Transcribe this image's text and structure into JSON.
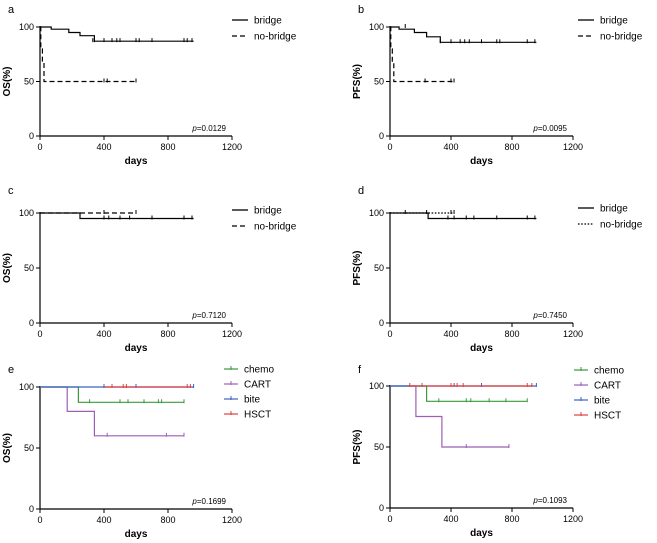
{
  "chart_data": [
    {
      "panel": "a",
      "type": "line",
      "title": "",
      "xlabel": "days",
      "ylabel": "OS(%)",
      "xlim": [
        0,
        1200
      ],
      "ylim": [
        0,
        100
      ],
      "xticks": [
        "0",
        "400",
        "800",
        "1200"
      ],
      "yticks": [
        "0",
        "50",
        "100"
      ],
      "pvalue": "p=0.0129",
      "series": [
        {
          "name": "bridge",
          "style": "solid",
          "color": "#000000",
          "x": [
            0,
            70,
            70,
            180,
            180,
            250,
            250,
            340,
            340,
            960
          ],
          "y": [
            100,
            100,
            98,
            98,
            95,
            95,
            92,
            92,
            87,
            87
          ],
          "censored": [
            [
              330,
              87
            ],
            [
              340,
              87
            ],
            [
              400,
              87
            ],
            [
              450,
              87
            ],
            [
              480,
              87
            ],
            [
              500,
              87
            ],
            [
              600,
              87
            ],
            [
              620,
              87
            ],
            [
              700,
              87
            ],
            [
              900,
              87
            ],
            [
              920,
              87
            ],
            [
              950,
              87
            ]
          ]
        },
        {
          "name": "no-bridge",
          "style": "dashed",
          "color": "#000000",
          "x": [
            0,
            5,
            5,
            15,
            15,
            25,
            25,
            600
          ],
          "y": [
            100,
            100,
            80,
            80,
            67,
            67,
            50,
            50
          ],
          "censored": [
            [
              400,
              50
            ],
            [
              420,
              50
            ],
            [
              600,
              50
            ]
          ]
        }
      ]
    },
    {
      "panel": "b",
      "type": "line",
      "title": "",
      "xlabel": "days",
      "ylabel": "PFS(%)",
      "xlim": [
        0,
        1200
      ],
      "ylim": [
        0,
        100
      ],
      "xticks": [
        "0",
        "400",
        "800",
        "1200"
      ],
      "yticks": [
        "0",
        "50",
        "100"
      ],
      "pvalue": "p=0.0095",
      "series": [
        {
          "name": "bridge",
          "style": "solid",
          "color": "#000000",
          "x": [
            0,
            60,
            60,
            160,
            160,
            240,
            240,
            330,
            330,
            960
          ],
          "y": [
            100,
            100,
            98,
            98,
            95,
            95,
            91,
            91,
            86,
            86
          ],
          "censored": [
            [
              100,
              100
            ],
            [
              330,
              86
            ],
            [
              400,
              86
            ],
            [
              460,
              86
            ],
            [
              490,
              86
            ],
            [
              520,
              86
            ],
            [
              600,
              86
            ],
            [
              700,
              86
            ],
            [
              720,
              86
            ],
            [
              900,
              86
            ],
            [
              950,
              86
            ]
          ]
        },
        {
          "name": "no-bridge",
          "style": "dashed",
          "color": "#000000",
          "x": [
            0,
            5,
            5,
            15,
            15,
            25,
            25,
            420
          ],
          "y": [
            100,
            100,
            80,
            80,
            67,
            67,
            50,
            50
          ],
          "censored": [
            [
              230,
              50
            ],
            [
              400,
              50
            ],
            [
              420,
              50
            ]
          ]
        }
      ]
    },
    {
      "panel": "c",
      "type": "line",
      "title": "",
      "xlabel": "days",
      "ylabel": "OS(%)",
      "xlim": [
        0,
        1200
      ],
      "ylim": [
        0,
        100
      ],
      "xticks": [
        "0",
        "400",
        "800",
        "1200"
      ],
      "yticks": [
        "0",
        "50",
        "100"
      ],
      "pvalue": "p=0.7120",
      "series": [
        {
          "name": "bridge",
          "style": "solid",
          "color": "#000000",
          "x": [
            0,
            250,
            250,
            960
          ],
          "y": [
            100,
            100,
            95,
            95
          ],
          "censored": [
            [
              400,
              95
            ],
            [
              430,
              95
            ],
            [
              500,
              95
            ],
            [
              560,
              95
            ],
            [
              700,
              95
            ],
            [
              900,
              95
            ],
            [
              950,
              95
            ]
          ]
        },
        {
          "name": "no-bridge",
          "style": "dashed",
          "color": "#000000",
          "x": [
            0,
            600
          ],
          "y": [
            100,
            100
          ],
          "censored": [
            [
              400,
              100
            ],
            [
              600,
              100
            ]
          ]
        }
      ]
    },
    {
      "panel": "d",
      "type": "line",
      "title": "",
      "xlabel": "days",
      "ylabel": "PFS(%)",
      "xlim": [
        0,
        1200
      ],
      "ylim": [
        0,
        100
      ],
      "xticks": [
        "0",
        "400",
        "800",
        "1200"
      ],
      "yticks": [
        "0",
        "50",
        "100"
      ],
      "pvalue": "p=0.7450",
      "series": [
        {
          "name": "bridge",
          "style": "solid",
          "color": "#000000",
          "x": [
            0,
            250,
            250,
            960
          ],
          "y": [
            100,
            100,
            95,
            95
          ],
          "censored": [
            [
              100,
              100
            ],
            [
              240,
              100
            ],
            [
              380,
              95
            ],
            [
              420,
              95
            ],
            [
              500,
              95
            ],
            [
              550,
              95
            ],
            [
              700,
              95
            ],
            [
              900,
              95
            ],
            [
              950,
              95
            ]
          ]
        },
        {
          "name": "no-bridge",
          "style": "dotted",
          "color": "#000000",
          "x": [
            0,
            420
          ],
          "y": [
            100,
            100
          ],
          "censored": [
            [
              400,
              100
            ],
            [
              420,
              100
            ]
          ]
        }
      ]
    },
    {
      "panel": "e",
      "type": "line",
      "title": "",
      "xlabel": "days",
      "ylabel": "OS(%)",
      "xlim": [
        0,
        1200
      ],
      "ylim": [
        0,
        100
      ],
      "xticks": [
        "0",
        "400",
        "800",
        "1200"
      ],
      "yticks": [
        "0",
        "50",
        "100"
      ],
      "pvalue": "p=0.1699",
      "series": [
        {
          "name": "chemo",
          "style": "solid",
          "color": "#3a9a3a",
          "x": [
            0,
            240,
            240,
            900
          ],
          "y": [
            100,
            100,
            87.5,
            87.5
          ],
          "censored": [
            [
              310,
              87.5
            ],
            [
              500,
              87.5
            ],
            [
              550,
              87.5
            ],
            [
              650,
              87.5
            ],
            [
              740,
              87.5
            ],
            [
              760,
              87.5
            ],
            [
              900,
              87.5
            ]
          ]
        },
        {
          "name": "CART",
          "style": "solid",
          "color": "#9b5fb5",
          "x": [
            0,
            170,
            170,
            340,
            340,
            900
          ],
          "y": [
            100,
            100,
            80,
            80,
            60,
            60
          ],
          "censored": [
            [
              420,
              60
            ],
            [
              790,
              60
            ],
            [
              900,
              60
            ]
          ]
        },
        {
          "name": "bite",
          "style": "solid",
          "color": "#3b63c4",
          "x": [
            0,
            960
          ],
          "y": [
            100,
            100
          ],
          "censored": [
            [
              400,
              100
            ],
            [
              600,
              100
            ],
            [
              960,
              100
            ]
          ]
        },
        {
          "name": "HSCT",
          "style": "solid",
          "color": "#e04040",
          "x": [
            400,
            940
          ],
          "y": [
            100,
            100
          ],
          "censored": [
            [
              450,
              100
            ],
            [
              520,
              100
            ],
            [
              540,
              100
            ],
            [
              920,
              100
            ],
            [
              940,
              100
            ]
          ]
        }
      ]
    },
    {
      "panel": "f",
      "type": "line",
      "title": "",
      "xlabel": "days",
      "ylabel": "PFS(%)",
      "xlim": [
        0,
        1200
      ],
      "ylim": [
        0,
        100
      ],
      "xticks": [
        "0",
        "400",
        "800",
        "1200"
      ],
      "yticks": [
        "0",
        "50",
        "100"
      ],
      "pvalue": "p=0.1093",
      "series": [
        {
          "name": "chemo",
          "style": "solid",
          "color": "#3a9a3a",
          "x": [
            0,
            240,
            240,
            900
          ],
          "y": [
            100,
            100,
            87.5,
            87.5
          ],
          "censored": [
            [
              210,
              100
            ],
            [
              320,
              87.5
            ],
            [
              500,
              87.5
            ],
            [
              530,
              87.5
            ],
            [
              650,
              87.5
            ],
            [
              760,
              87.5
            ],
            [
              900,
              87.5
            ]
          ]
        },
        {
          "name": "CART",
          "style": "solid",
          "color": "#9b5fb5",
          "x": [
            0,
            170,
            170,
            340,
            340,
            780
          ],
          "y": [
            100,
            100,
            75,
            75,
            50,
            50
          ],
          "censored": [
            [
              500,
              50
            ],
            [
              780,
              50
            ]
          ]
        },
        {
          "name": "bite",
          "style": "solid",
          "color": "#3b63c4",
          "x": [
            0,
            960
          ],
          "y": [
            100,
            100
          ],
          "censored": [
            [
              420,
              100
            ],
            [
              600,
              100
            ],
            [
              960,
              100
            ]
          ]
        },
        {
          "name": "HSCT",
          "style": "solid",
          "color": "#e04040",
          "x": [
            120,
            940
          ],
          "y": [
            100,
            100
          ],
          "censored": [
            [
              130,
              100
            ],
            [
              400,
              100
            ],
            [
              440,
              100
            ],
            [
              480,
              100
            ],
            [
              900,
              100
            ],
            [
              930,
              100
            ]
          ]
        }
      ]
    }
  ]
}
